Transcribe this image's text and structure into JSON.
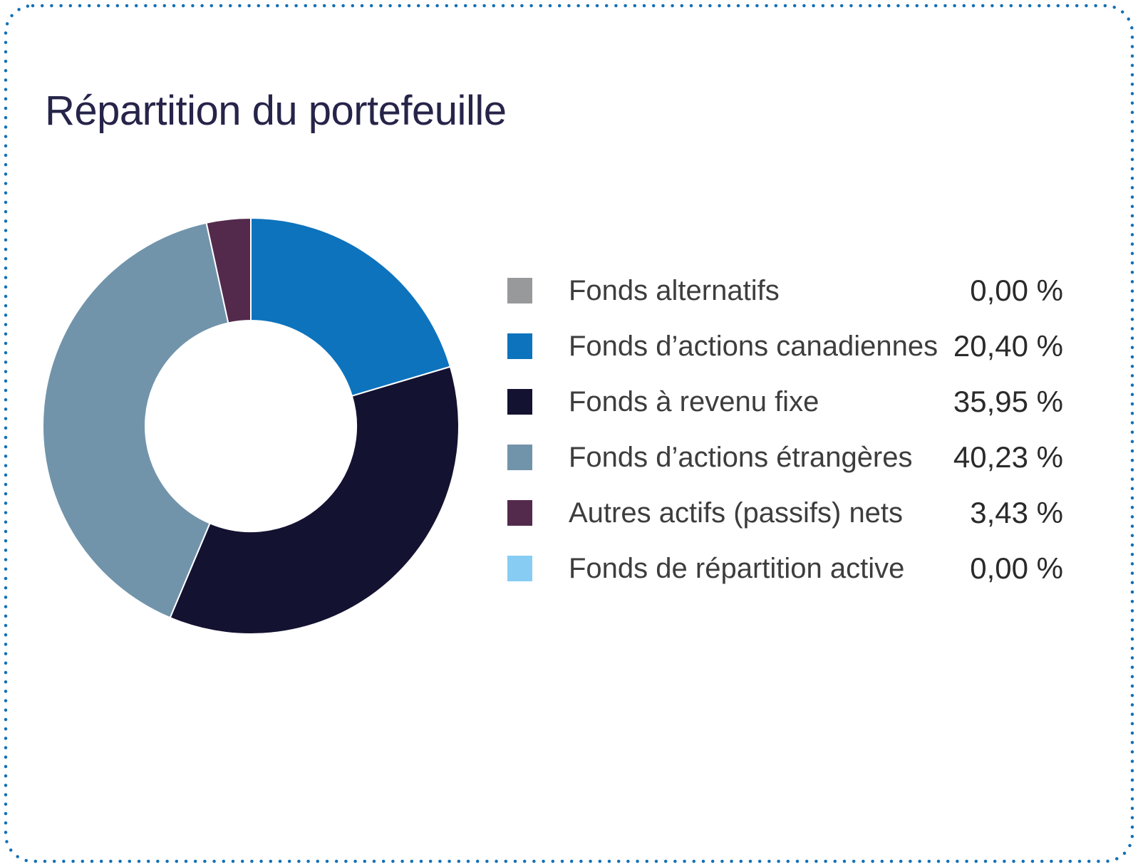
{
  "card": {
    "title": "Répartition du portefeuille"
  },
  "styles": {
    "border_color": "#1470b4",
    "title_color": "#262449",
    "label_color": "#3d3d3d",
    "value_color": "#2a2a2a",
    "slice_gap_color": "#ffffff"
  },
  "chart_data": {
    "type": "pie",
    "donut": true,
    "title": "Répartition du portefeuille",
    "legend_position": "right",
    "start_angle": "top",
    "direction": "clockwise",
    "value_unit": "%",
    "items": [
      {
        "label": "Fonds alternatifs",
        "value": 0.0,
        "display": "0,00 %",
        "color": "#98999b"
      },
      {
        "label": "Fonds d’actions canadiennes",
        "value": 20.4,
        "display": "20,40 %",
        "color": "#0d73bd"
      },
      {
        "label": "Fonds à revenu fixe",
        "value": 35.95,
        "display": "35,95 %",
        "color": "#141231"
      },
      {
        "label": "Fonds d’actions étrangères",
        "value": 40.23,
        "display": "40,23 %",
        "color": "#7194ab"
      },
      {
        "label": "Autres actifs (passifs) nets",
        "value": 3.43,
        "display": "3,43 %",
        "color": "#532a4c"
      },
      {
        "label": "Fonds de répartition active",
        "value": 0.0,
        "display": "0,00 %",
        "color": "#87cdf3"
      }
    ]
  }
}
